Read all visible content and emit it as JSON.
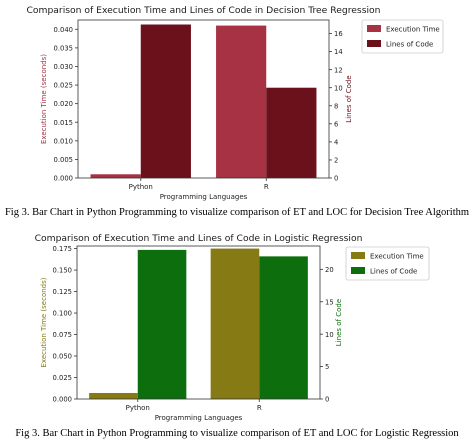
{
  "figures": [
    {
      "caption": "Fig 3. Bar Chart in Python Programming to visualize comparison of ET and LOC for Decision Tree Algorithm"
    },
    {
      "caption": "Fig 3. Bar Chart in Python Programming to visualize comparison of ET and LOC for Logistic Regression"
    }
  ],
  "chart_data": [
    {
      "type": "bar",
      "title": "Comparison of Execution Time and Lines of Code in Decision Tree Regression",
      "xlabel": "Programming Languages",
      "ylabel": "Execution Time (seconds)",
      "ylabel_right": "Lines of Code",
      "categories": [
        "Python",
        "R"
      ],
      "series": [
        {
          "name": "Execution Time",
          "axis": "left",
          "values": [
            0.001,
            0.041
          ],
          "color": "#a63244"
        },
        {
          "name": "Lines of Code",
          "axis": "right",
          "values": [
            17,
            10
          ],
          "color": "#6b111c"
        }
      ],
      "ylim": [
        0,
        0.0425
      ],
      "yticks": [
        "0.000",
        "0.005",
        "0.010",
        "0.015",
        "0.020",
        "0.025",
        "0.030",
        "0.035",
        "0.040"
      ],
      "ylim_right": [
        0,
        17.5
      ],
      "yticks_right": [
        "0",
        "2",
        "4",
        "6",
        "8",
        "10",
        "12",
        "14",
        "16"
      ],
      "ylabel_color": "#a63244",
      "ylabel_right_color": "#6b111c",
      "legend_position": "outside-right-top",
      "grid": false
    },
    {
      "type": "bar",
      "title": "Comparison of Execution Time and Lines of Code in Logistic Regression",
      "xlabel": "Programming Languages",
      "ylabel": "Execution Time (seconds)",
      "ylabel_right": "Lines of Code",
      "categories": [
        "Python",
        "R"
      ],
      "series": [
        {
          "name": "Execution Time",
          "axis": "left",
          "values": [
            0.007,
            0.175
          ],
          "color": "#857a14"
        },
        {
          "name": "Lines of Code",
          "axis": "right",
          "values": [
            23,
            22
          ],
          "color": "#0d6e0d"
        }
      ],
      "ylim": [
        0,
        0.178
      ],
      "yticks": [
        "0.000",
        "0.025",
        "0.050",
        "0.075",
        "0.100",
        "0.125",
        "0.150",
        "0.175"
      ],
      "ylim_right": [
        0,
        23.6
      ],
      "yticks_right": [
        "0",
        "5",
        "10",
        "15",
        "20"
      ],
      "ylabel_color": "#857a14",
      "ylabel_right_color": "#0d6e0d",
      "legend_position": "outside-right-top",
      "grid": false
    }
  ]
}
